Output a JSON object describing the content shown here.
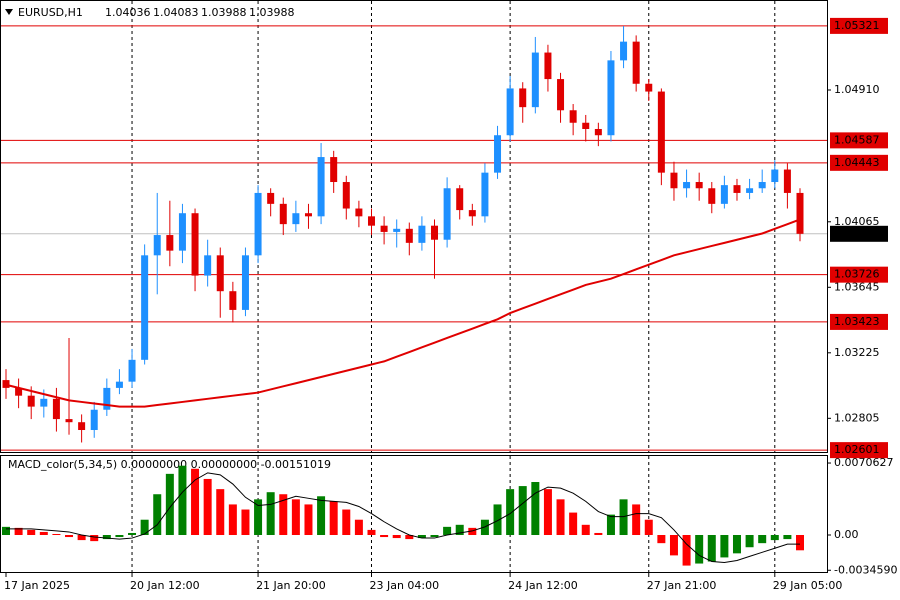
{
  "chart_data": [
    {
      "type": "candlestick",
      "title": "EURUSD,H1",
      "header_values": [
        1.04036,
        1.04083,
        1.03988,
        1.03988
      ],
      "categories": [
        "17 Jan 2025",
        null,
        null,
        null,
        null,
        null,
        null,
        null,
        null,
        null,
        "20 Jan 12:00",
        null,
        null,
        null,
        null,
        null,
        null,
        null,
        null,
        null,
        "21 Jan 20:00",
        null,
        null,
        null,
        null,
        null,
        null,
        null,
        null,
        "23 Jan 04:00",
        null,
        null,
        null,
        null,
        null,
        null,
        null,
        null,
        null,
        null,
        "24 Jan 12:00",
        null,
        null,
        null,
        null,
        null,
        null,
        null,
        null,
        null,
        null,
        "27 Jan 21:00",
        null,
        null,
        null,
        null,
        null,
        null,
        null,
        null,
        null,
        "29 Jan 05:00",
        null,
        null
      ],
      "open": [
        1.0305,
        1.03,
        1.0295,
        1.0288,
        1.0293,
        1.028,
        1.0278,
        1.0273,
        1.0286,
        1.03,
        1.0304,
        1.0318,
        1.0385,
        1.0398,
        1.0388,
        1.0412,
        1.0372,
        1.0385,
        1.0362,
        1.035,
        1.0385,
        1.0425,
        1.0418,
        1.0405,
        1.0412,
        1.041,
        1.0448,
        1.0432,
        1.0415,
        1.041,
        1.0404,
        1.04,
        1.0402,
        1.0393,
        1.0404,
        1.0395,
        1.0428,
        1.0414,
        1.041,
        1.0438,
        1.0462,
        1.0492,
        1.048,
        1.0515,
        1.0498,
        1.0478,
        1.047,
        1.0466,
        1.0462,
        1.051,
        1.0522,
        1.0495,
        1.049,
        1.0438,
        1.0428,
        1.0432,
        1.0428,
        1.0418,
        1.043,
        1.0425,
        1.0428,
        1.0432,
        1.044,
        1.0425
      ],
      "high": [
        1.0312,
        1.0306,
        1.0301,
        1.0299,
        1.03,
        1.0332,
        1.0283,
        1.0291,
        1.0306,
        1.0312,
        1.0325,
        1.0392,
        1.0425,
        1.042,
        1.0418,
        1.0415,
        1.0395,
        1.039,
        1.0368,
        1.039,
        1.043,
        1.0428,
        1.0422,
        1.042,
        1.0418,
        1.0457,
        1.0452,
        1.0436,
        1.042,
        1.0415,
        1.041,
        1.0408,
        1.0406,
        1.041,
        1.0408,
        1.0435,
        1.043,
        1.0418,
        1.0444,
        1.0468,
        1.05,
        1.0496,
        1.0525,
        1.052,
        1.0502,
        1.0482,
        1.0475,
        1.047,
        1.0516,
        1.0532,
        1.0526,
        1.0498,
        1.0492,
        1.0445,
        1.044,
        1.0438,
        1.0432,
        1.0436,
        1.0434,
        1.0434,
        1.044,
        1.0446,
        1.0444,
        1.0428
      ],
      "low": [
        1.0293,
        1.0287,
        1.028,
        1.0281,
        1.0272,
        1.027,
        1.0265,
        1.0268,
        1.0282,
        1.0296,
        1.03,
        1.0315,
        1.036,
        1.0378,
        1.038,
        1.0362,
        1.0365,
        1.0345,
        1.0342,
        1.0346,
        1.038,
        1.041,
        1.0398,
        1.04,
        1.0402,
        1.0405,
        1.0425,
        1.0408,
        1.0403,
        1.0398,
        1.0392,
        1.039,
        1.0385,
        1.0388,
        1.037,
        1.039,
        1.0408,
        1.0404,
        1.0406,
        1.0434,
        1.0458,
        1.047,
        1.0476,
        1.049,
        1.047,
        1.0462,
        1.0458,
        1.0455,
        1.0458,
        1.0505,
        1.049,
        1.0484,
        1.043,
        1.042,
        1.0422,
        1.042,
        1.0412,
        1.0415,
        1.042,
        1.0421,
        1.0425,
        1.0428,
        1.0415,
        1.0394
      ],
      "close": [
        1.03,
        1.0295,
        1.0288,
        1.0293,
        1.028,
        1.0278,
        1.0273,
        1.0286,
        1.03,
        1.0304,
        1.0318,
        1.0385,
        1.0398,
        1.0388,
        1.0412,
        1.0372,
        1.0385,
        1.0362,
        1.035,
        1.0385,
        1.0425,
        1.0418,
        1.0405,
        1.0412,
        1.041,
        1.0448,
        1.0432,
        1.0415,
        1.041,
        1.0404,
        1.04,
        1.0402,
        1.0393,
        1.0404,
        1.0395,
        1.0428,
        1.0414,
        1.041,
        1.0438,
        1.0462,
        1.0492,
        1.048,
        1.0515,
        1.0498,
        1.0478,
        1.047,
        1.0466,
        1.0462,
        1.051,
        1.0522,
        1.0495,
        1.049,
        1.0438,
        1.0428,
        1.0432,
        1.0428,
        1.0418,
        1.043,
        1.0425,
        1.0428,
        1.0432,
        1.044,
        1.0425,
        1.03988
      ],
      "up_color": "#1e90ff",
      "down_color": "#e00000",
      "ma": {
        "color": "#e00000",
        "values": [
          1.0302,
          1.03,
          1.0298,
          1.0296,
          1.0294,
          1.0292,
          1.0291,
          1.029,
          1.0289,
          1.0288,
          1.0288,
          1.0288,
          1.0289,
          1.029,
          1.0291,
          1.0292,
          1.0293,
          1.0294,
          1.0295,
          1.0296,
          1.0297,
          1.0299,
          1.0301,
          1.0303,
          1.0305,
          1.0307,
          1.0309,
          1.0311,
          1.0313,
          1.0315,
          1.0317,
          1.032,
          1.0323,
          1.0326,
          1.0329,
          1.0332,
          1.0335,
          1.0338,
          1.0341,
          1.0344,
          1.0348,
          1.0351,
          1.0354,
          1.0357,
          1.036,
          1.0363,
          1.0366,
          1.0368,
          1.037,
          1.0373,
          1.0376,
          1.0379,
          1.0382,
          1.0385,
          1.0387,
          1.0389,
          1.0391,
          1.0393,
          1.0395,
          1.0397,
          1.0399,
          1.0402,
          1.0405,
          1.0408
        ]
      },
      "levels": [
        1.05321,
        1.04587,
        1.04443,
        1.03726,
        1.03423,
        1.02601
      ],
      "level_color": "#e00000",
      "last_price": 1.03988,
      "ylim": [
        1.02589,
        1.05487
      ],
      "yticks": [
        {
          "value": 1.0491,
          "label": "1.04910"
        },
        1.04065,
        1.03645,
        1.03225,
        1.02805
      ],
      "grid": true
    },
    {
      "type": "histogram",
      "title": "MACD_color(5,34,5) 0.00000000 0.00000000 -0.00151019",
      "values": [
        0.0008,
        0.0007,
        0.0005,
        0.0003,
        0.0001,
        -0.0002,
        -0.0005,
        -0.0006,
        -0.0004,
        -0.0002,
        0.0002,
        0.0015,
        0.004,
        0.006,
        0.0068,
        0.0065,
        0.0055,
        0.0045,
        0.003,
        0.0025,
        0.0035,
        0.0042,
        0.004,
        0.0035,
        0.003,
        0.0038,
        0.0033,
        0.0025,
        0.0015,
        0.0005,
        -0.0002,
        -0.0003,
        -0.0004,
        -0.0003,
        -0.0002,
        0.0008,
        0.001,
        0.0007,
        0.0015,
        0.003,
        0.0045,
        0.0048,
        0.0052,
        0.0045,
        0.0035,
        0.0022,
        0.001,
        0.0002,
        0.002,
        0.0035,
        0.003,
        0.0015,
        -0.0008,
        -0.002,
        -0.003,
        -0.0028,
        -0.0026,
        -0.0022,
        -0.0018,
        -0.0012,
        -0.0008,
        -0.0005,
        -0.0004,
        -0.0015
      ],
      "signal": [
        0.0006,
        0.0006,
        0.0006,
        0.0005,
        0.0004,
        0.0003,
        0.0,
        -0.0002,
        -0.0003,
        -0.0004,
        -0.0003,
        0.0001,
        0.001,
        0.0027,
        0.0042,
        0.0054,
        0.0061,
        0.0059,
        0.005,
        0.0037,
        0.0029,
        0.003,
        0.0034,
        0.0038,
        0.0036,
        0.0034,
        0.0033,
        0.0032,
        0.0028,
        0.0021,
        0.0013,
        0.0006,
        0.0,
        -0.0003,
        -0.0003,
        0.0,
        0.0002,
        0.0004,
        0.0008,
        0.0014,
        0.0021,
        0.0031,
        0.0041,
        0.0047,
        0.0046,
        0.0041,
        0.0033,
        0.0023,
        0.0018,
        0.0018,
        0.0021,
        0.0021,
        0.0017,
        0.0005,
        -0.0009,
        -0.002,
        -0.0026,
        -0.0027,
        -0.0025,
        -0.0021,
        -0.0017,
        -0.0013,
        -0.0009,
        -0.0009
      ],
      "up_color": "#008000",
      "down_color": "#ff0000",
      "signal_color": "#000000",
      "ylim": [
        -0.00363,
        0.00785
      ],
      "yticks": [
        0.0070627,
        {
          "value": 0,
          "label": "0.00"
        },
        {
          "value": -0.003459,
          "label": "-0.0034590"
        }
      ]
    }
  ]
}
